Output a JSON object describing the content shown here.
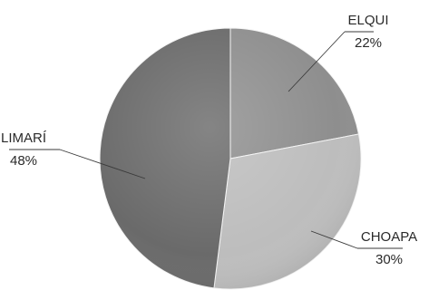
{
  "chart_data": {
    "type": "pie",
    "slices": [
      {
        "label": "ELQUI",
        "value": 22,
        "value_label": "22%",
        "color": "#8e8e8e"
      },
      {
        "label": "CHOAPA",
        "value": 30,
        "value_label": "30%",
        "color": "#bdbdbd"
      },
      {
        "label": "LIMARÍ",
        "value": 48,
        "value_label": "48%",
        "color": "#6a6a6a"
      }
    ],
    "start": "top",
    "direction": "clockwise",
    "legend": "none"
  }
}
